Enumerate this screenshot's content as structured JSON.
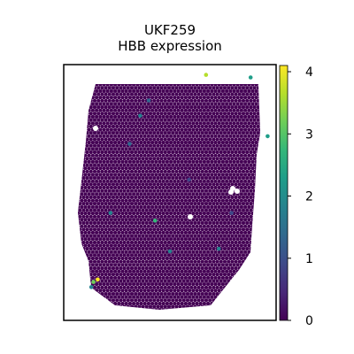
{
  "chart_data": {
    "type": "scatter",
    "title_line1": "UKF259",
    "title_line2": "HBB expression",
    "xlabel": "",
    "ylabel": "",
    "colorbar": {
      "min": 0,
      "max": 4.1,
      "ticks": [
        0,
        1,
        2,
        3,
        4
      ],
      "tick_labels": [
        "0",
        "1",
        "2",
        "3",
        "4"
      ],
      "colormap": "viridis"
    },
    "grid": false,
    "highlighted_spots": [
      {
        "x": 0.67,
        "y": 0.96,
        "value": 3.6
      },
      {
        "x": 0.16,
        "y": 0.16,
        "value": 4.0
      },
      {
        "x": 0.14,
        "y": 0.15,
        "value": 3.4
      },
      {
        "x": 0.43,
        "y": 0.39,
        "value": 2.6
      },
      {
        "x": 0.96,
        "y": 0.72,
        "value": 2.5
      },
      {
        "x": 0.88,
        "y": 0.95,
        "value": 2.2
      },
      {
        "x": 0.22,
        "y": 0.42,
        "value": 2.0
      },
      {
        "x": 0.5,
        "y": 0.27,
        "value": 1.8
      },
      {
        "x": 0.36,
        "y": 0.8,
        "value": 1.7
      },
      {
        "x": 0.73,
        "y": 0.28,
        "value": 1.6
      },
      {
        "x": 0.13,
        "y": 0.13,
        "value": 1.9
      },
      {
        "x": 0.4,
        "y": 0.86,
        "value": 1.5
      },
      {
        "x": 0.31,
        "y": 0.69,
        "value": 1.2
      },
      {
        "x": 0.59,
        "y": 0.55,
        "value": 1.1
      },
      {
        "x": 0.79,
        "y": 0.42,
        "value": 1.0
      }
    ]
  },
  "colors": {
    "viridis": [
      "#440154",
      "#482878",
      "#3e4989",
      "#31688e",
      "#26828e",
      "#1f9e89",
      "#35b779",
      "#6ece58",
      "#b5de2b",
      "#fde725"
    ],
    "background_spot": "#440154",
    "frame": "#000000"
  }
}
